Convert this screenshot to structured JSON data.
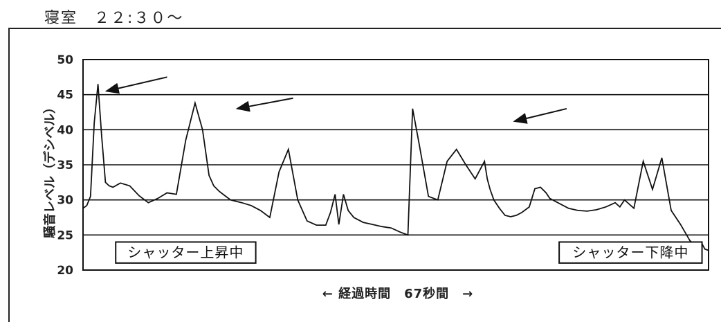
{
  "title": "寝室　２２:３０～",
  "chart_data": {
    "type": "line",
    "ylabel": "騒音レベル（デシベル）",
    "xlabel": "← 経過時間　67秒間　→",
    "xlim": [
      0,
      67
    ],
    "ylim": [
      20,
      50
    ],
    "yticks": [
      20,
      25,
      30,
      35,
      40,
      45,
      50
    ],
    "grid": true,
    "series": [
      {
        "x": [
          0,
          0.4,
          0.8,
          1.2,
          1.6,
          2.0,
          2.4,
          2.8,
          3.2,
          4,
          5,
          6,
          7,
          8,
          9,
          10,
          11,
          12,
          12.8,
          13.5,
          14,
          14.6,
          15.2,
          15.8,
          16.4,
          17,
          18,
          19,
          20,
          21,
          22,
          23,
          24,
          25,
          26,
          26.5,
          27,
          27.4,
          27.9,
          28.4,
          29,
          30,
          31,
          32,
          33,
          34,
          34.8,
          35.3,
          36,
          37,
          38,
          39,
          40,
          41,
          42,
          43,
          43.3,
          43.6,
          44,
          44.6,
          45.2,
          45.8,
          46.4,
          47,
          47.8,
          48.4,
          49,
          49.6,
          50,
          51,
          52,
          53,
          54,
          55,
          56,
          56.5,
          57,
          57.5,
          58,
          59,
          60,
          61,
          62,
          63,
          64,
          65,
          65.6,
          66.2,
          66.6,
          67
        ],
        "y": [
          28.8,
          29.2,
          30.5,
          41.0,
          46.5,
          39.0,
          32.5,
          32.0,
          31.8,
          32.4,
          32.0,
          30.6,
          29.6,
          30.2,
          31.0,
          30.8,
          38.5,
          43.8,
          40.0,
          33.5,
          32.0,
          31.2,
          30.6,
          30.0,
          29.8,
          29.6,
          29.2,
          28.5,
          27.5,
          34.0,
          37.2,
          30.0,
          27.0,
          26.4,
          26.4,
          28.2,
          30.8,
          26.5,
          30.8,
          28.5,
          27.5,
          26.8,
          26.5,
          26.2,
          26.0,
          25.4,
          25.0,
          43.0,
          38.0,
          30.5,
          30.0,
          35.5,
          37.2,
          35.0,
          33.0,
          35.5,
          33.0,
          31.5,
          30.0,
          28.8,
          27.8,
          27.6,
          27.8,
          28.2,
          29.0,
          31.6,
          31.8,
          31.0,
          30.2,
          29.5,
          28.8,
          28.5,
          28.4,
          28.6,
          29.0,
          29.3,
          29.6,
          29.0,
          30.0,
          28.8,
          35.5,
          31.5,
          36.0,
          28.5,
          26.5,
          24.2,
          23.5,
          24.0,
          23.0,
          22.8
        ]
      }
    ],
    "annotations": [
      {
        "text": "シャッター上昇中",
        "x_from": 3.5,
        "x_to": 18.5,
        "y_from": 21.0,
        "y_to": 24.0
      },
      {
        "text": "シャッター下降中",
        "x_from": 51,
        "x_to": 66.3,
        "y_from": 21.0,
        "y_to": 24.0
      }
    ],
    "arrows": [
      {
        "from": [
          9.0,
          47.5
        ],
        "to": [
          2.5,
          45.5
        ]
      },
      {
        "from": [
          22.5,
          44.5
        ],
        "to": [
          16.5,
          43.0
        ]
      },
      {
        "from": [
          51.8,
          43.0
        ],
        "to": [
          46.2,
          41.2
        ]
      }
    ]
  }
}
